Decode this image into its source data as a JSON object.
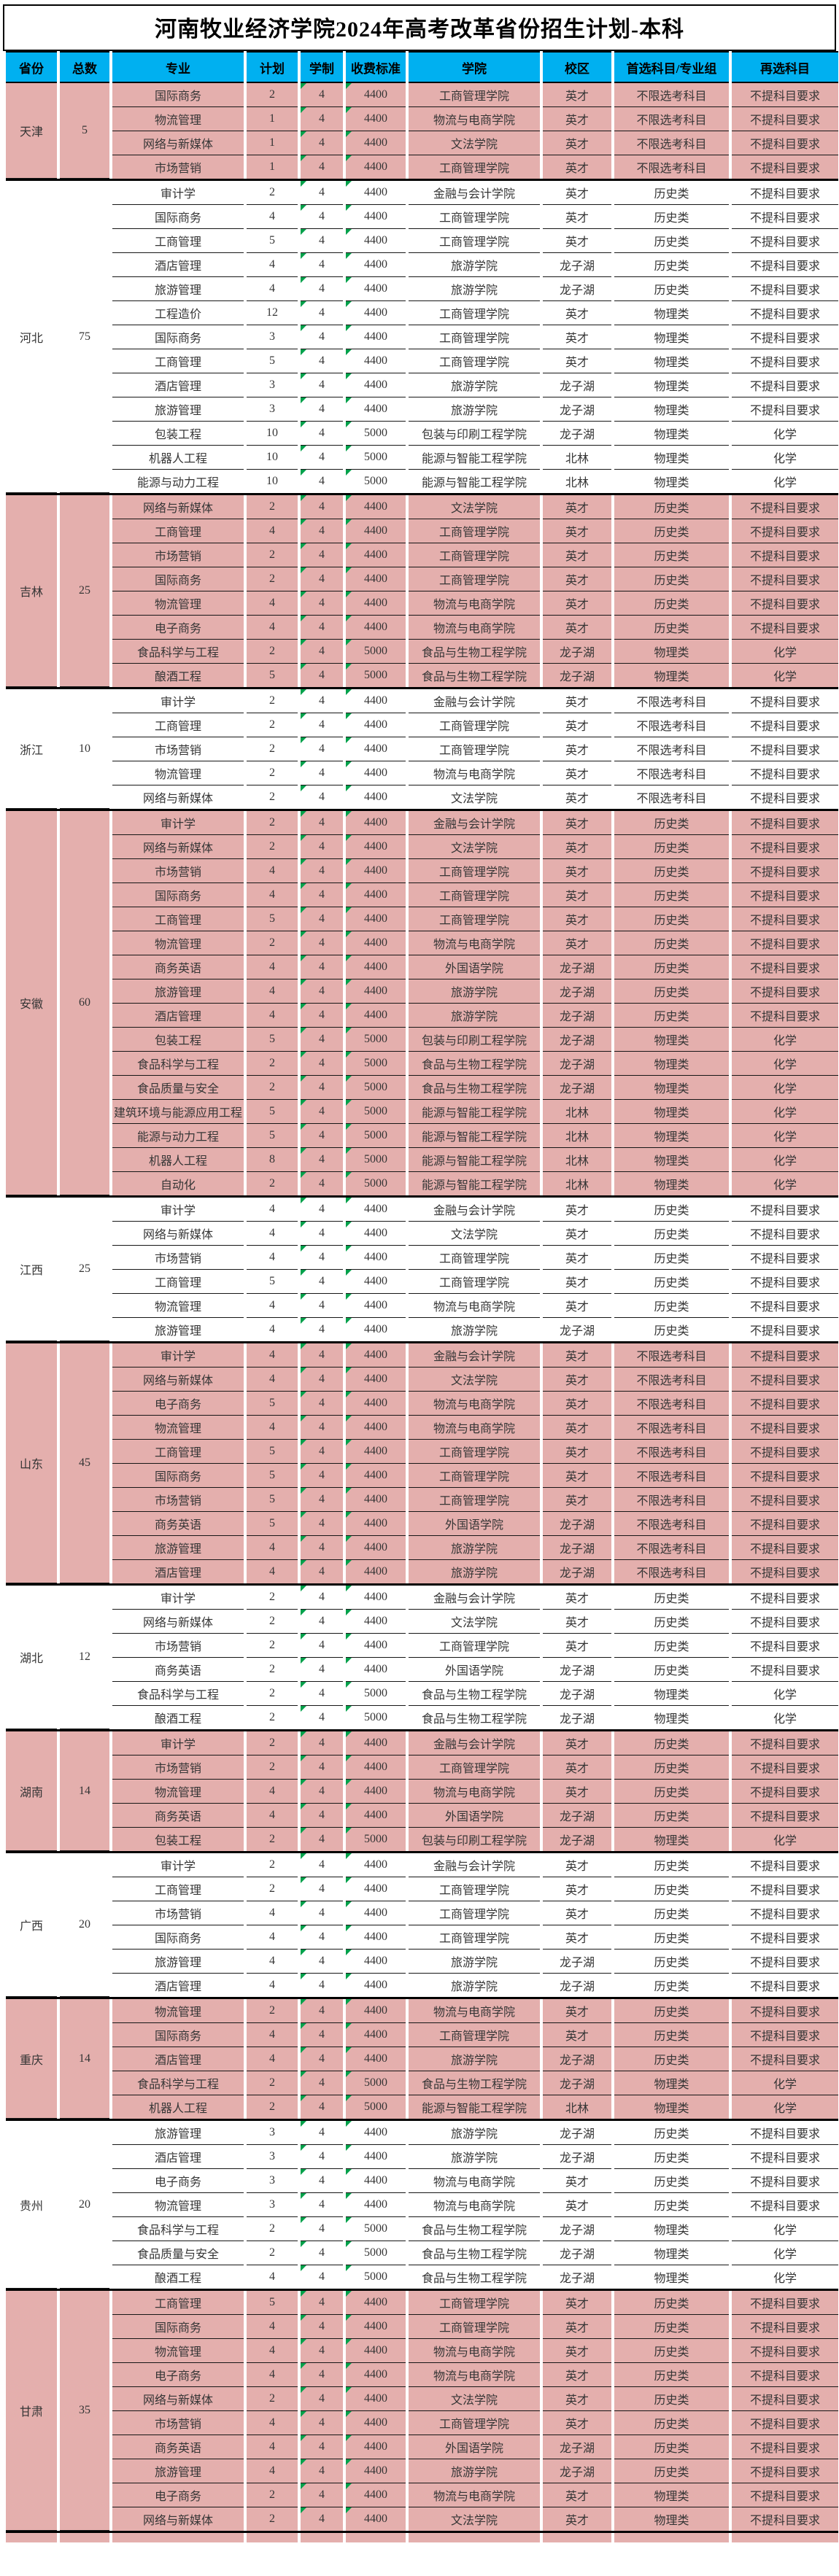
{
  "title": "河南牧业经济学院2024年高考改革省份招生计划-本科",
  "columns": [
    "省份",
    "总数",
    "专业",
    "计划",
    "学制",
    "收费标准",
    "学院",
    "校区",
    "首选科目/专业组",
    "再选科目"
  ],
  "col_keys": [
    "province",
    "total",
    "major",
    "plan",
    "duration",
    "fee",
    "college",
    "campus",
    "subject-group",
    "reselect"
  ],
  "colors": {
    "header_bg": "#00B0F0",
    "row_pink": "#E4AFAD",
    "row_white": "#FFFFFF",
    "marker_green": "#00A14B",
    "line_black": "#000000"
  },
  "provinces": [
    {
      "name": "天津",
      "total": "5",
      "shade": "pink",
      "rows": [
        [
          "国际商务",
          "2",
          "4",
          "4400",
          "工商管理学院",
          "英才",
          "不限选考科目",
          "不提科目要求"
        ],
        [
          "物流管理",
          "1",
          "4",
          "4400",
          "物流与电商学院",
          "英才",
          "不限选考科目",
          "不提科目要求"
        ],
        [
          "网络与新媒体",
          "1",
          "4",
          "4400",
          "文法学院",
          "英才",
          "不限选考科目",
          "不提科目要求"
        ],
        [
          "市场营销",
          "1",
          "4",
          "4400",
          "工商管理学院",
          "英才",
          "不限选考科目",
          "不提科目要求"
        ]
      ]
    },
    {
      "name": "河北",
      "total": "75",
      "shade": "white",
      "rows": [
        [
          "审计学",
          "2",
          "4",
          "4400",
          "金融与会计学院",
          "英才",
          "历史类",
          "不提科目要求"
        ],
        [
          "国际商务",
          "4",
          "4",
          "4400",
          "工商管理学院",
          "英才",
          "历史类",
          "不提科目要求"
        ],
        [
          "工商管理",
          "5",
          "4",
          "4400",
          "工商管理学院",
          "英才",
          "历史类",
          "不提科目要求"
        ],
        [
          "酒店管理",
          "4",
          "4",
          "4400",
          "旅游学院",
          "龙子湖",
          "历史类",
          "不提科目要求"
        ],
        [
          "旅游管理",
          "4",
          "4",
          "4400",
          "旅游学院",
          "龙子湖",
          "历史类",
          "不提科目要求"
        ],
        [
          "工程造价",
          "12",
          "4",
          "4400",
          "工商管理学院",
          "英才",
          "物理类",
          "不提科目要求"
        ],
        [
          "国际商务",
          "3",
          "4",
          "4400",
          "工商管理学院",
          "英才",
          "物理类",
          "不提科目要求"
        ],
        [
          "工商管理",
          "5",
          "4",
          "4400",
          "工商管理学院",
          "英才",
          "物理类",
          "不提科目要求"
        ],
        [
          "酒店管理",
          "3",
          "4",
          "4400",
          "旅游学院",
          "龙子湖",
          "物理类",
          "不提科目要求"
        ],
        [
          "旅游管理",
          "3",
          "4",
          "4400",
          "旅游学院",
          "龙子湖",
          "物理类",
          "不提科目要求"
        ],
        [
          "包装工程",
          "10",
          "4",
          "5000",
          "包装与印刷工程学院",
          "龙子湖",
          "物理类",
          "化学"
        ],
        [
          "机器人工程",
          "10",
          "4",
          "5000",
          "能源与智能工程学院",
          "北林",
          "物理类",
          "化学"
        ],
        [
          "能源与动力工程",
          "10",
          "4",
          "5000",
          "能源与智能工程学院",
          "北林",
          "物理类",
          "化学"
        ]
      ]
    },
    {
      "name": "吉林",
      "total": "25",
      "shade": "pink",
      "rows": [
        [
          "网络与新媒体",
          "2",
          "4",
          "4400",
          "文法学院",
          "英才",
          "历史类",
          "不提科目要求"
        ],
        [
          "工商管理",
          "4",
          "4",
          "4400",
          "工商管理学院",
          "英才",
          "历史类",
          "不提科目要求"
        ],
        [
          "市场营销",
          "2",
          "4",
          "4400",
          "工商管理学院",
          "英才",
          "历史类",
          "不提科目要求"
        ],
        [
          "国际商务",
          "2",
          "4",
          "4400",
          "工商管理学院",
          "英才",
          "历史类",
          "不提科目要求"
        ],
        [
          "物流管理",
          "4",
          "4",
          "4400",
          "物流与电商学院",
          "英才",
          "历史类",
          "不提科目要求"
        ],
        [
          "电子商务",
          "4",
          "4",
          "4400",
          "物流与电商学院",
          "英才",
          "历史类",
          "不提科目要求"
        ],
        [
          "食品科学与工程",
          "2",
          "4",
          "5000",
          "食品与生物工程学院",
          "龙子湖",
          "物理类",
          "化学"
        ],
        [
          "酿酒工程",
          "5",
          "4",
          "5000",
          "食品与生物工程学院",
          "龙子湖",
          "物理类",
          "化学"
        ]
      ]
    },
    {
      "name": "浙江",
      "total": "10",
      "shade": "white",
      "rows": [
        [
          "审计学",
          "2",
          "4",
          "4400",
          "金融与会计学院",
          "英才",
          "不限选考科目",
          "不提科目要求"
        ],
        [
          "工商管理",
          "2",
          "4",
          "4400",
          "工商管理学院",
          "英才",
          "不限选考科目",
          "不提科目要求"
        ],
        [
          "市场营销",
          "2",
          "4",
          "4400",
          "工商管理学院",
          "英才",
          "不限选考科目",
          "不提科目要求"
        ],
        [
          "物流管理",
          "2",
          "4",
          "4400",
          "物流与电商学院",
          "英才",
          "不限选考科目",
          "不提科目要求"
        ],
        [
          "网络与新媒体",
          "2",
          "4",
          "4400",
          "文法学院",
          "英才",
          "不限选考科目",
          "不提科目要求"
        ]
      ]
    },
    {
      "name": "安徽",
      "total": "60",
      "shade": "pink",
      "rows": [
        [
          "审计学",
          "2",
          "4",
          "4400",
          "金融与会计学院",
          "英才",
          "历史类",
          "不提科目要求"
        ],
        [
          "网络与新媒体",
          "2",
          "4",
          "4400",
          "文法学院",
          "英才",
          "历史类",
          "不提科目要求"
        ],
        [
          "市场营销",
          "4",
          "4",
          "4400",
          "工商管理学院",
          "英才",
          "历史类",
          "不提科目要求"
        ],
        [
          "国际商务",
          "4",
          "4",
          "4400",
          "工商管理学院",
          "英才",
          "历史类",
          "不提科目要求"
        ],
        [
          "工商管理",
          "5",
          "4",
          "4400",
          "工商管理学院",
          "英才",
          "历史类",
          "不提科目要求"
        ],
        [
          "物流管理",
          "2",
          "4",
          "4400",
          "物流与电商学院",
          "英才",
          "历史类",
          "不提科目要求"
        ],
        [
          "商务英语",
          "4",
          "4",
          "4400",
          "外国语学院",
          "龙子湖",
          "历史类",
          "不提科目要求"
        ],
        [
          "旅游管理",
          "4",
          "4",
          "4400",
          "旅游学院",
          "龙子湖",
          "历史类",
          "不提科目要求"
        ],
        [
          "酒店管理",
          "4",
          "4",
          "4400",
          "旅游学院",
          "龙子湖",
          "历史类",
          "不提科目要求"
        ],
        [
          "包装工程",
          "5",
          "4",
          "5000",
          "包装与印刷工程学院",
          "龙子湖",
          "物理类",
          "化学"
        ],
        [
          "食品科学与工程",
          "2",
          "4",
          "5000",
          "食品与生物工程学院",
          "龙子湖",
          "物理类",
          "化学"
        ],
        [
          "食品质量与安全",
          "2",
          "4",
          "5000",
          "食品与生物工程学院",
          "龙子湖",
          "物理类",
          "化学"
        ],
        [
          "建筑环境与能源应用工程",
          "5",
          "4",
          "5000",
          "能源与智能工程学院",
          "北林",
          "物理类",
          "化学"
        ],
        [
          "能源与动力工程",
          "5",
          "4",
          "5000",
          "能源与智能工程学院",
          "北林",
          "物理类",
          "化学"
        ],
        [
          "机器人工程",
          "8",
          "4",
          "5000",
          "能源与智能工程学院",
          "北林",
          "物理类",
          "化学"
        ],
        [
          "自动化",
          "2",
          "4",
          "5000",
          "能源与智能工程学院",
          "北林",
          "物理类",
          "化学"
        ]
      ]
    },
    {
      "name": "江西",
      "total": "25",
      "shade": "white",
      "rows": [
        [
          "审计学",
          "4",
          "4",
          "4400",
          "金融与会计学院",
          "英才",
          "历史类",
          "不提科目要求"
        ],
        [
          "网络与新媒体",
          "4",
          "4",
          "4400",
          "文法学院",
          "英才",
          "历史类",
          "不提科目要求"
        ],
        [
          "市场营销",
          "4",
          "4",
          "4400",
          "工商管理学院",
          "英才",
          "历史类",
          "不提科目要求"
        ],
        [
          "工商管理",
          "5",
          "4",
          "4400",
          "工商管理学院",
          "英才",
          "历史类",
          "不提科目要求"
        ],
        [
          "物流管理",
          "4",
          "4",
          "4400",
          "物流与电商学院",
          "英才",
          "历史类",
          "不提科目要求"
        ],
        [
          "旅游管理",
          "4",
          "4",
          "4400",
          "旅游学院",
          "龙子湖",
          "历史类",
          "不提科目要求"
        ]
      ]
    },
    {
      "name": "山东",
      "total": "45",
      "shade": "pink",
      "rows": [
        [
          "审计学",
          "4",
          "4",
          "4400",
          "金融与会计学院",
          "英才",
          "不限选考科目",
          "不提科目要求"
        ],
        [
          "网络与新媒体",
          "4",
          "4",
          "4400",
          "文法学院",
          "英才",
          "不限选考科目",
          "不提科目要求"
        ],
        [
          "电子商务",
          "5",
          "4",
          "4400",
          "物流与电商学院",
          "英才",
          "不限选考科目",
          "不提科目要求"
        ],
        [
          "物流管理",
          "4",
          "4",
          "4400",
          "物流与电商学院",
          "英才",
          "不限选考科目",
          "不提科目要求"
        ],
        [
          "工商管理",
          "5",
          "4",
          "4400",
          "工商管理学院",
          "英才",
          "不限选考科目",
          "不提科目要求"
        ],
        [
          "国际商务",
          "5",
          "4",
          "4400",
          "工商管理学院",
          "英才",
          "不限选考科目",
          "不提科目要求"
        ],
        [
          "市场营销",
          "5",
          "4",
          "4400",
          "工商管理学院",
          "英才",
          "不限选考科目",
          "不提科目要求"
        ],
        [
          "商务英语",
          "5",
          "4",
          "4400",
          "外国语学院",
          "龙子湖",
          "不限选考科目",
          "不提科目要求"
        ],
        [
          "旅游管理",
          "4",
          "4",
          "4400",
          "旅游学院",
          "龙子湖",
          "不限选考科目",
          "不提科目要求"
        ],
        [
          "酒店管理",
          "4",
          "4",
          "4400",
          "旅游学院",
          "龙子湖",
          "不限选考科目",
          "不提科目要求"
        ]
      ]
    },
    {
      "name": "湖北",
      "total": "12",
      "shade": "white",
      "rows": [
        [
          "审计学",
          "2",
          "4",
          "4400",
          "金融与会计学院",
          "英才",
          "历史类",
          "不提科目要求"
        ],
        [
          "网络与新媒体",
          "2",
          "4",
          "4400",
          "文法学院",
          "英才",
          "历史类",
          "不提科目要求"
        ],
        [
          "市场营销",
          "2",
          "4",
          "4400",
          "工商管理学院",
          "英才",
          "历史类",
          "不提科目要求"
        ],
        [
          "商务英语",
          "2",
          "4",
          "4400",
          "外国语学院",
          "龙子湖",
          "历史类",
          "不提科目要求"
        ],
        [
          "食品科学与工程",
          "2",
          "4",
          "5000",
          "食品与生物工程学院",
          "龙子湖",
          "物理类",
          "化学"
        ],
        [
          "酿酒工程",
          "2",
          "4",
          "5000",
          "食品与生物工程学院",
          "龙子湖",
          "物理类",
          "化学"
        ]
      ]
    },
    {
      "name": "湖南",
      "total": "14",
      "shade": "pink",
      "rows": [
        [
          "审计学",
          "2",
          "4",
          "4400",
          "金融与会计学院",
          "英才",
          "历史类",
          "不提科目要求"
        ],
        [
          "市场营销",
          "2",
          "4",
          "4400",
          "工商管理学院",
          "英才",
          "历史类",
          "不提科目要求"
        ],
        [
          "物流管理",
          "4",
          "4",
          "4400",
          "物流与电商学院",
          "英才",
          "历史类",
          "不提科目要求"
        ],
        [
          "商务英语",
          "4",
          "4",
          "4400",
          "外国语学院",
          "龙子湖",
          "历史类",
          "不提科目要求"
        ],
        [
          "包装工程",
          "2",
          "4",
          "5000",
          "包装与印刷工程学院",
          "龙子湖",
          "物理类",
          "化学"
        ]
      ]
    },
    {
      "name": "广西",
      "total": "20",
      "shade": "white",
      "rows": [
        [
          "审计学",
          "2",
          "4",
          "4400",
          "金融与会计学院",
          "英才",
          "历史类",
          "不提科目要求"
        ],
        [
          "工商管理",
          "2",
          "4",
          "4400",
          "工商管理学院",
          "英才",
          "历史类",
          "不提科目要求"
        ],
        [
          "市场营销",
          "4",
          "4",
          "4400",
          "工商管理学院",
          "英才",
          "历史类",
          "不提科目要求"
        ],
        [
          "国际商务",
          "4",
          "4",
          "4400",
          "工商管理学院",
          "英才",
          "历史类",
          "不提科目要求"
        ],
        [
          "旅游管理",
          "4",
          "4",
          "4400",
          "旅游学院",
          "龙子湖",
          "历史类",
          "不提科目要求"
        ],
        [
          "酒店管理",
          "4",
          "4",
          "4400",
          "旅游学院",
          "龙子湖",
          "历史类",
          "不提科目要求"
        ]
      ]
    },
    {
      "name": "重庆",
      "total": "14",
      "shade": "pink",
      "rows": [
        [
          "物流管理",
          "2",
          "4",
          "4400",
          "物流与电商学院",
          "英才",
          "历史类",
          "不提科目要求"
        ],
        [
          "国际商务",
          "4",
          "4",
          "4400",
          "工商管理学院",
          "英才",
          "历史类",
          "不提科目要求"
        ],
        [
          "酒店管理",
          "4",
          "4",
          "4400",
          "旅游学院",
          "龙子湖",
          "历史类",
          "不提科目要求"
        ],
        [
          "食品科学与工程",
          "2",
          "4",
          "5000",
          "食品与生物工程学院",
          "龙子湖",
          "物理类",
          "化学"
        ],
        [
          "机器人工程",
          "2",
          "4",
          "5000",
          "能源与智能工程学院",
          "北林",
          "物理类",
          "化学"
        ]
      ]
    },
    {
      "name": "贵州",
      "total": "20",
      "shade": "white",
      "rows": [
        [
          "旅游管理",
          "3",
          "4",
          "4400",
          "旅游学院",
          "龙子湖",
          "历史类",
          "不提科目要求"
        ],
        [
          "酒店管理",
          "3",
          "4",
          "4400",
          "旅游学院",
          "龙子湖",
          "历史类",
          "不提科目要求"
        ],
        [
          "电子商务",
          "3",
          "4",
          "4400",
          "物流与电商学院",
          "英才",
          "历史类",
          "不提科目要求"
        ],
        [
          "物流管理",
          "3",
          "4",
          "4400",
          "物流与电商学院",
          "英才",
          "历史类",
          "不提科目要求"
        ],
        [
          "食品科学与工程",
          "2",
          "4",
          "5000",
          "食品与生物工程学院",
          "龙子湖",
          "物理类",
          "化学"
        ],
        [
          "食品质量与安全",
          "2",
          "4",
          "5000",
          "食品与生物工程学院",
          "龙子湖",
          "物理类",
          "化学"
        ],
        [
          "酿酒工程",
          "4",
          "4",
          "5000",
          "食品与生物工程学院",
          "龙子湖",
          "物理类",
          "化学"
        ]
      ]
    },
    {
      "name": "甘肃",
      "total": "35",
      "shade": "pink",
      "rows": [
        [
          "工商管理",
          "5",
          "4",
          "4400",
          "工商管理学院",
          "英才",
          "历史类",
          "不提科目要求"
        ],
        [
          "国际商务",
          "4",
          "4",
          "4400",
          "工商管理学院",
          "英才",
          "历史类",
          "不提科目要求"
        ],
        [
          "物流管理",
          "4",
          "4",
          "4400",
          "物流与电商学院",
          "英才",
          "历史类",
          "不提科目要求"
        ],
        [
          "电子商务",
          "4",
          "4",
          "4400",
          "物流与电商学院",
          "英才",
          "历史类",
          "不提科目要求"
        ],
        [
          "网络与新媒体",
          "2",
          "4",
          "4400",
          "文法学院",
          "英才",
          "历史类",
          "不提科目要求"
        ],
        [
          "市场营销",
          "4",
          "4",
          "4400",
          "工商管理学院",
          "英才",
          "历史类",
          "不提科目要求"
        ],
        [
          "商务英语",
          "4",
          "4",
          "4400",
          "外国语学院",
          "龙子湖",
          "历史类",
          "不提科目要求"
        ],
        [
          "旅游管理",
          "4",
          "4",
          "4400",
          "旅游学院",
          "龙子湖",
          "历史类",
          "不提科目要求"
        ],
        [
          "电子商务",
          "2",
          "4",
          "4400",
          "物流与电商学院",
          "英才",
          "物理类",
          "不提科目要求"
        ],
        [
          "网络与新媒体",
          "2",
          "4",
          "4400",
          "文法学院",
          "英才",
          "物理类",
          "不提科目要求"
        ]
      ]
    }
  ]
}
